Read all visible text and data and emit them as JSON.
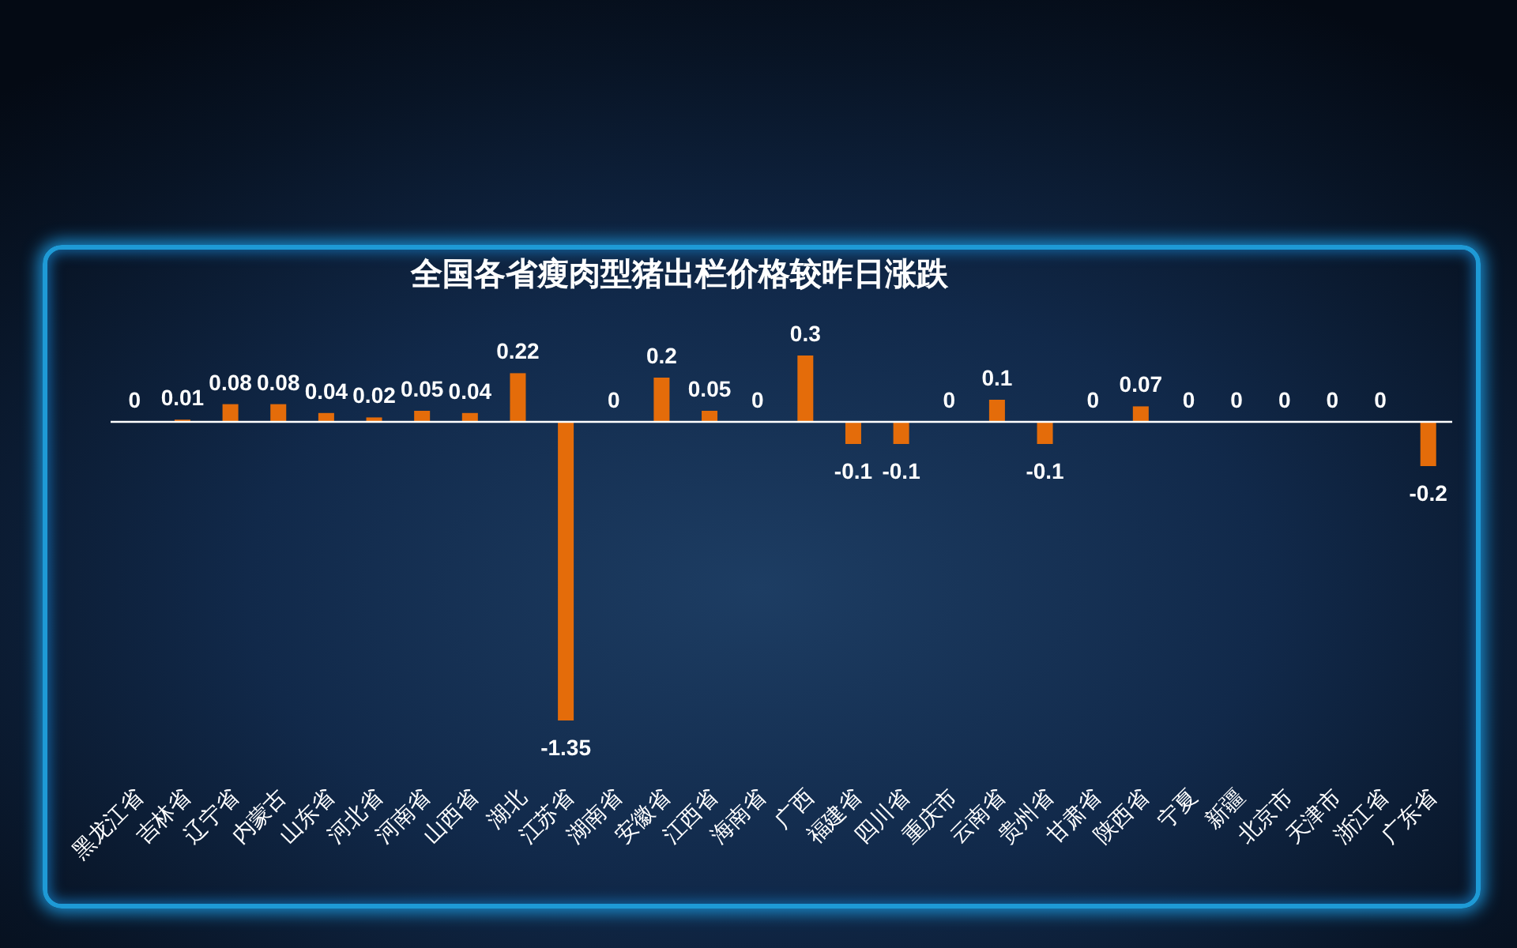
{
  "chart_data": {
    "type": "bar",
    "title": "全国各省瘦肉型猪出栏价格较昨日涨跌",
    "categories": [
      "黑龙江省",
      "吉林省",
      "辽宁省",
      "内蒙古",
      "山东省",
      "河北省",
      "河南省",
      "山西省",
      "湖北",
      "江苏省",
      "湖南省",
      "安徽省",
      "江西省",
      "海南省",
      "广西",
      "福建省",
      "四川省",
      "重庆市",
      "云南省",
      "贵州省",
      "甘肃省",
      "陕西省",
      "宁夏",
      "新疆",
      "北京市",
      "天津市",
      "浙江省",
      "广东省"
    ],
    "values": [
      0,
      0.01,
      0.08,
      0.08,
      0.04,
      0.02,
      0.05,
      0.04,
      0.22,
      -1.35,
      0,
      0.2,
      0.05,
      0,
      0.3,
      -0.1,
      -0.1,
      0,
      0.1,
      -0.1,
      0,
      0.07,
      0,
      0,
      0,
      0,
      0,
      -0.2
    ],
    "color": "#e46c0a",
    "data_labels": true
  }
}
